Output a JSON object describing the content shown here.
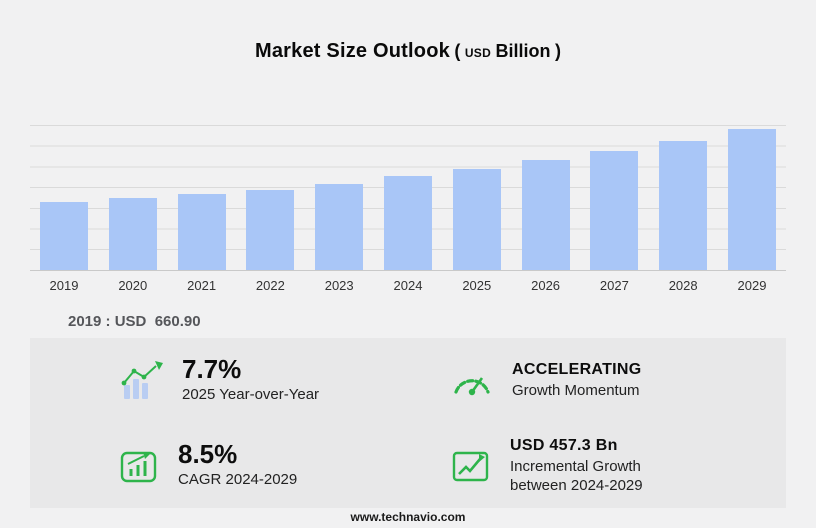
{
  "title": {
    "main": "Market Size Outlook",
    "open_paren": "(",
    "unit_small": "USD",
    "unit": "Billion",
    "close_paren": ")"
  },
  "chart_data": {
    "type": "bar",
    "title": "Market Size Outlook (USD Billion)",
    "categories": [
      "2019",
      "2020",
      "2021",
      "2022",
      "2023",
      "2024",
      "2025",
      "2026",
      "2027",
      "2028",
      "2029"
    ],
    "values": [
      660.9,
      694,
      729,
      776,
      833,
      908,
      978,
      1061,
      1151,
      1249,
      1365
    ],
    "ylabel": "USD Billion",
    "xlabel": "",
    "ylim": [
      0,
      1400
    ],
    "grid": true,
    "legend": false,
    "bar_color": "#a9c6f7"
  },
  "annotation": {
    "base_year_value": "2019 : USD  660.90"
  },
  "stats": {
    "yoy": {
      "value": "7.7%",
      "label": "2025 Year-over-Year"
    },
    "momentum": {
      "value": "ACCELERATING",
      "label": "Growth Momentum"
    },
    "cagr": {
      "value": "8.5%",
      "label": "CAGR 2024-2029"
    },
    "incremental": {
      "value": "USD 457.3 Bn",
      "label_line1": "Incremental Growth",
      "label_line2": "between 2024-2029"
    }
  },
  "footer": {
    "website": "www.technavio.com"
  },
  "colors": {
    "bar": "#a9c6f7",
    "green": "#2eb44b",
    "panel_bg": "#e8e8e9",
    "page_bg": "#f1f1f2"
  }
}
